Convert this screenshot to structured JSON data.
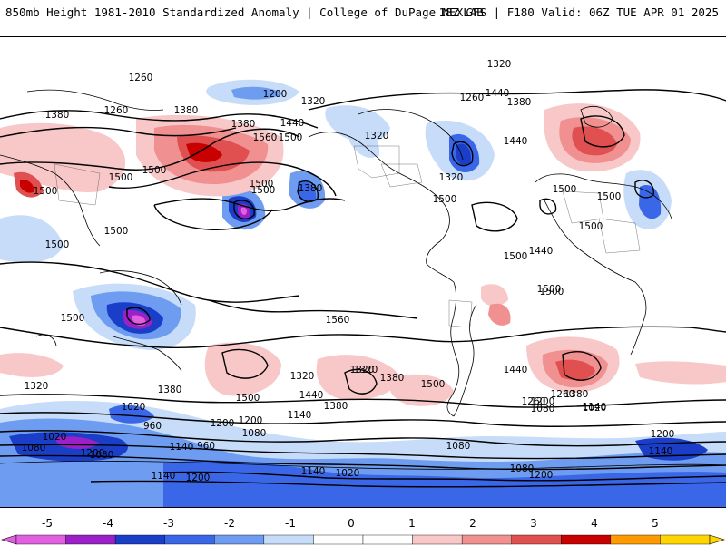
{
  "header": {
    "title": "850mb Height 1981-2010 Standardized Anomaly | College of DuPage NEXLAB",
    "run_info": "18Z GFS | F180 Valid: 06Z TUE APR 01 2025"
  },
  "contour_labels": [
    "1260",
    "1200",
    "1260",
    "1380",
    "1320",
    "1380",
    "1440",
    "1260",
    "1380",
    "1320",
    "1380",
    "1320",
    "1440",
    "1500",
    "1560",
    "1500",
    "1500",
    "1500",
    "1320",
    "1380",
    "1500",
    "1440",
    "1500",
    "1500",
    "1500",
    "1500",
    "1500",
    "1500",
    "1500",
    "1500",
    "1500",
    "1500",
    "1560",
    "1500",
    "1440",
    "1440",
    "1380",
    "1320",
    "1320",
    "1500",
    "1440",
    "1380",
    "1260",
    "1200",
    "1200",
    "1140",
    "1320",
    "1500",
    "1380",
    "1260",
    "1200",
    "1140",
    "1080",
    "1020",
    "1020",
    "960",
    "1080",
    "1140",
    "1020",
    "1080",
    "1200",
    "1080",
    "1140",
    "960",
    "1020",
    "1080",
    "1200",
    "1200",
    "1140",
    "1080",
    "1200",
    "1140",
    "1320",
    "1380"
  ],
  "colorbar": {
    "ticks": [
      "-5",
      "-4",
      "-3",
      "-2",
      "-1",
      "0",
      "1",
      "2",
      "3",
      "4",
      "5"
    ],
    "colors": [
      "#e060e0",
      "#9b20c8",
      "#1a3ec8",
      "#3a66e8",
      "#6e9cf0",
      "#c6dcf8",
      "#ffffff",
      "#ffffff",
      "#f8c8c8",
      "#f09090",
      "#e05050",
      "#c80000",
      "#ff9a00",
      "#ffd400"
    ]
  }
}
